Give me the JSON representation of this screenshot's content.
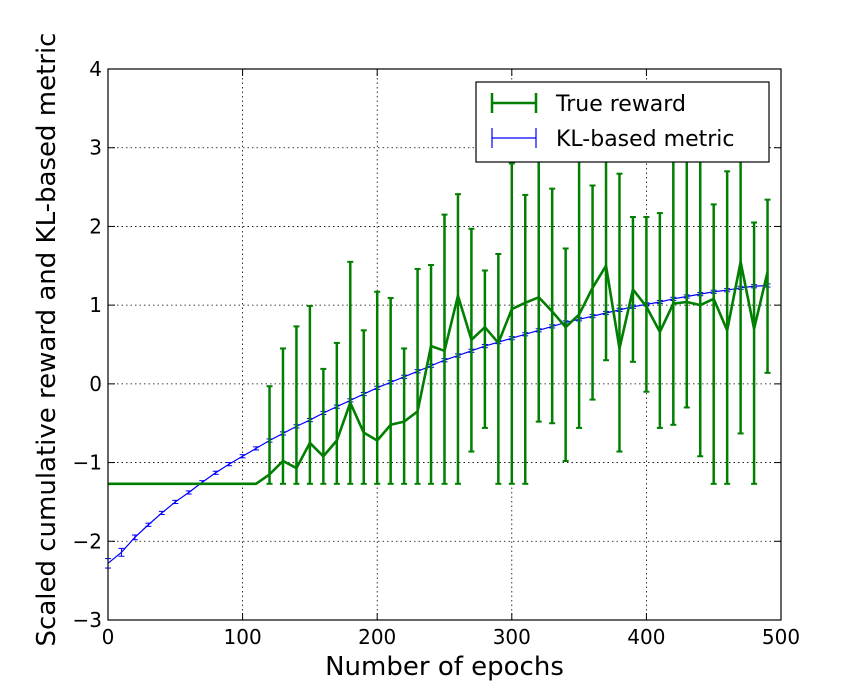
{
  "chart_data": {
    "type": "line",
    "xlabel": "Number of epochs",
    "ylabel": "Scaled cumulative reward and KL-based metric",
    "xlim": [
      0,
      500
    ],
    "ylim": [
      -3,
      4
    ],
    "x_ticks": [
      "0",
      "100",
      "200",
      "300",
      "400",
      "500"
    ],
    "y_ticks": [
      "−3",
      "−2",
      "−1",
      "0",
      "1",
      "2",
      "3",
      "4"
    ],
    "grid": true,
    "grid_style": "dotted",
    "legend_position": "top-right",
    "series": [
      {
        "name": "True reward",
        "color": "#007f00",
        "style": "thick-line-with-errorbars",
        "x": [
          0,
          10,
          20,
          30,
          40,
          50,
          60,
          70,
          80,
          90,
          100,
          110,
          120,
          130,
          140,
          150,
          160,
          170,
          180,
          190,
          200,
          210,
          220,
          230,
          240,
          250,
          260,
          270,
          280,
          290,
          300,
          310,
          320,
          330,
          340,
          350,
          360,
          370,
          380,
          390,
          400,
          410,
          420,
          430,
          440,
          450,
          460,
          470,
          480,
          490
        ],
        "y": [
          -1.27,
          -1.27,
          -1.27,
          -1.27,
          -1.27,
          -1.27,
          -1.27,
          -1.27,
          -1.27,
          -1.27,
          -1.27,
          -1.27,
          -1.15,
          -0.98,
          -1.07,
          -0.75,
          -0.92,
          -0.72,
          -0.24,
          -0.62,
          -0.72,
          -0.52,
          -0.48,
          -0.35,
          0.48,
          0.42,
          1.12,
          0.56,
          0.72,
          0.52,
          0.95,
          1.03,
          1.1,
          0.92,
          0.72,
          0.88,
          1.22,
          1.5,
          0.45,
          1.2,
          0.98,
          0.66,
          1.02,
          1.04,
          1.0,
          1.08,
          0.68,
          1.55,
          0.7,
          1.42
        ],
        "err_low": [
          null,
          null,
          null,
          null,
          null,
          null,
          null,
          null,
          null,
          null,
          null,
          null,
          -1.27,
          -1.27,
          -1.27,
          -1.27,
          -1.27,
          -1.27,
          -1.27,
          -1.27,
          -1.27,
          -1.27,
          -1.27,
          -1.27,
          -1.27,
          -1.27,
          -1.27,
          -0.86,
          -0.56,
          -1.27,
          -1.27,
          -1.27,
          -0.48,
          -0.5,
          -0.98,
          -0.56,
          -0.2,
          0.3,
          -0.86,
          0.28,
          -0.1,
          -0.56,
          -0.52,
          -0.3,
          -0.92,
          -1.27,
          -1.27,
          -0.63,
          -1.27,
          0.14
        ],
        "err_high": [
          null,
          null,
          null,
          null,
          null,
          null,
          null,
          null,
          null,
          null,
          null,
          null,
          -0.03,
          0.45,
          0.73,
          0.99,
          0.19,
          0.52,
          1.55,
          0.68,
          1.17,
          1.09,
          0.45,
          1.46,
          1.51,
          2.15,
          2.41,
          1.97,
          1.44,
          1.65,
          2.8,
          2.4,
          3.1,
          2.48,
          1.72,
          3.1,
          2.52,
          2.92,
          2.67,
          2.12,
          2.12,
          2.17,
          3.1,
          3.1,
          3.05,
          2.28,
          2.7,
          2.9,
          2.05,
          2.34
        ]
      },
      {
        "name": "KL-based metric",
        "color": "#0000ff",
        "style": "thin-line-with-errorbars",
        "x": [
          0,
          10,
          20,
          30,
          40,
          50,
          60,
          70,
          80,
          90,
          100,
          110,
          120,
          130,
          140,
          150,
          160,
          170,
          180,
          190,
          200,
          210,
          220,
          230,
          240,
          250,
          260,
          270,
          280,
          290,
          300,
          310,
          320,
          330,
          340,
          350,
          360,
          370,
          380,
          390,
          400,
          410,
          420,
          430,
          440,
          450,
          460,
          470,
          480,
          490
        ],
        "y": [
          -2.28,
          -2.14,
          -1.95,
          -1.79,
          -1.64,
          -1.5,
          -1.38,
          -1.25,
          -1.13,
          -1.02,
          -0.92,
          -0.82,
          -0.72,
          -0.63,
          -0.54,
          -0.46,
          -0.37,
          -0.29,
          -0.21,
          -0.13,
          -0.05,
          0.02,
          0.09,
          0.16,
          0.23,
          0.3,
          0.36,
          0.42,
          0.48,
          0.53,
          0.58,
          0.63,
          0.68,
          0.73,
          0.78,
          0.82,
          0.86,
          0.9,
          0.94,
          0.98,
          1.01,
          1.04,
          1.08,
          1.11,
          1.14,
          1.17,
          1.19,
          1.22,
          1.24,
          1.25
        ],
        "err": [
          0.06,
          0.05,
          0.03,
          0.02,
          0.02,
          0.02,
          0.02,
          0.02,
          0.02,
          0.02,
          0.02,
          0.02,
          0.02,
          0.02,
          0.02,
          0.02,
          0.02,
          0.02,
          0.02,
          0.02,
          0.02,
          0.02,
          0.02,
          0.02,
          0.02,
          0.02,
          0.02,
          0.02,
          0.02,
          0.02,
          0.02,
          0.02,
          0.02,
          0.02,
          0.02,
          0.02,
          0.02,
          0.02,
          0.02,
          0.02,
          0.02,
          0.02,
          0.02,
          0.02,
          0.02,
          0.02,
          0.02,
          0.02,
          0.02,
          0.02
        ]
      }
    ]
  }
}
